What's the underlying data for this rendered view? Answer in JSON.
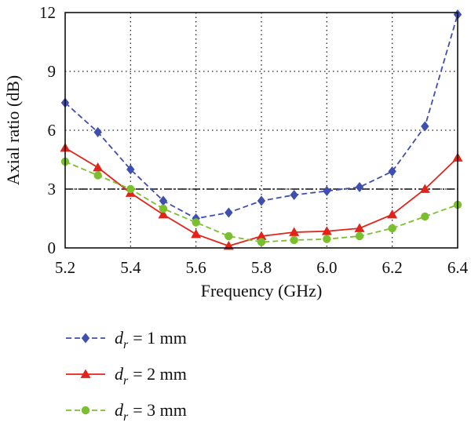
{
  "chart_data": {
    "type": "line",
    "title": "",
    "xlabel": "Frequency (GHz)",
    "ylabel": "Axial ratio (dB)",
    "xlim": [
      5.2,
      6.4
    ],
    "ylim": [
      0,
      12
    ],
    "x_ticks": [
      "5.2",
      "5.4",
      "5.6",
      "5.8",
      "6.0",
      "6.2",
      "6.4"
    ],
    "y_ticks": [
      "0",
      "3",
      "6",
      "9",
      "12"
    ],
    "grid": true,
    "reference_line": {
      "y": 3,
      "style": "dash-dot"
    },
    "legend_position": "bottom",
    "x": [
      5.2,
      5.3,
      5.4,
      5.5,
      5.6,
      5.7,
      5.8,
      5.9,
      6.0,
      6.1,
      6.2,
      6.3,
      6.4
    ],
    "series": [
      {
        "legend_var": "d",
        "legend_sub": "r",
        "legend_value": "= 1 mm",
        "color": "#3f4fb0",
        "marker": "diamond",
        "dash": "dashed",
        "values": [
          7.4,
          5.9,
          4.0,
          2.4,
          1.5,
          1.8,
          2.4,
          2.7,
          2.9,
          3.1,
          3.9,
          6.2,
          11.9
        ]
      },
      {
        "legend_var": "d",
        "legend_sub": "r",
        "legend_value": "= 2 mm",
        "color": "#e2231a",
        "marker": "triangle",
        "dash": "solid",
        "values": [
          5.1,
          4.1,
          2.8,
          1.7,
          0.7,
          0.1,
          0.6,
          0.8,
          0.85,
          1.0,
          1.7,
          3.0,
          4.6
        ]
      },
      {
        "legend_var": "d",
        "legend_sub": "r",
        "legend_value": "= 3 mm",
        "color": "#7cbf2e",
        "marker": "circle",
        "dash": "dashed",
        "values": [
          4.4,
          3.7,
          3.0,
          2.0,
          1.3,
          0.6,
          0.3,
          0.4,
          0.45,
          0.6,
          1.0,
          1.6,
          2.2
        ]
      }
    ]
  }
}
